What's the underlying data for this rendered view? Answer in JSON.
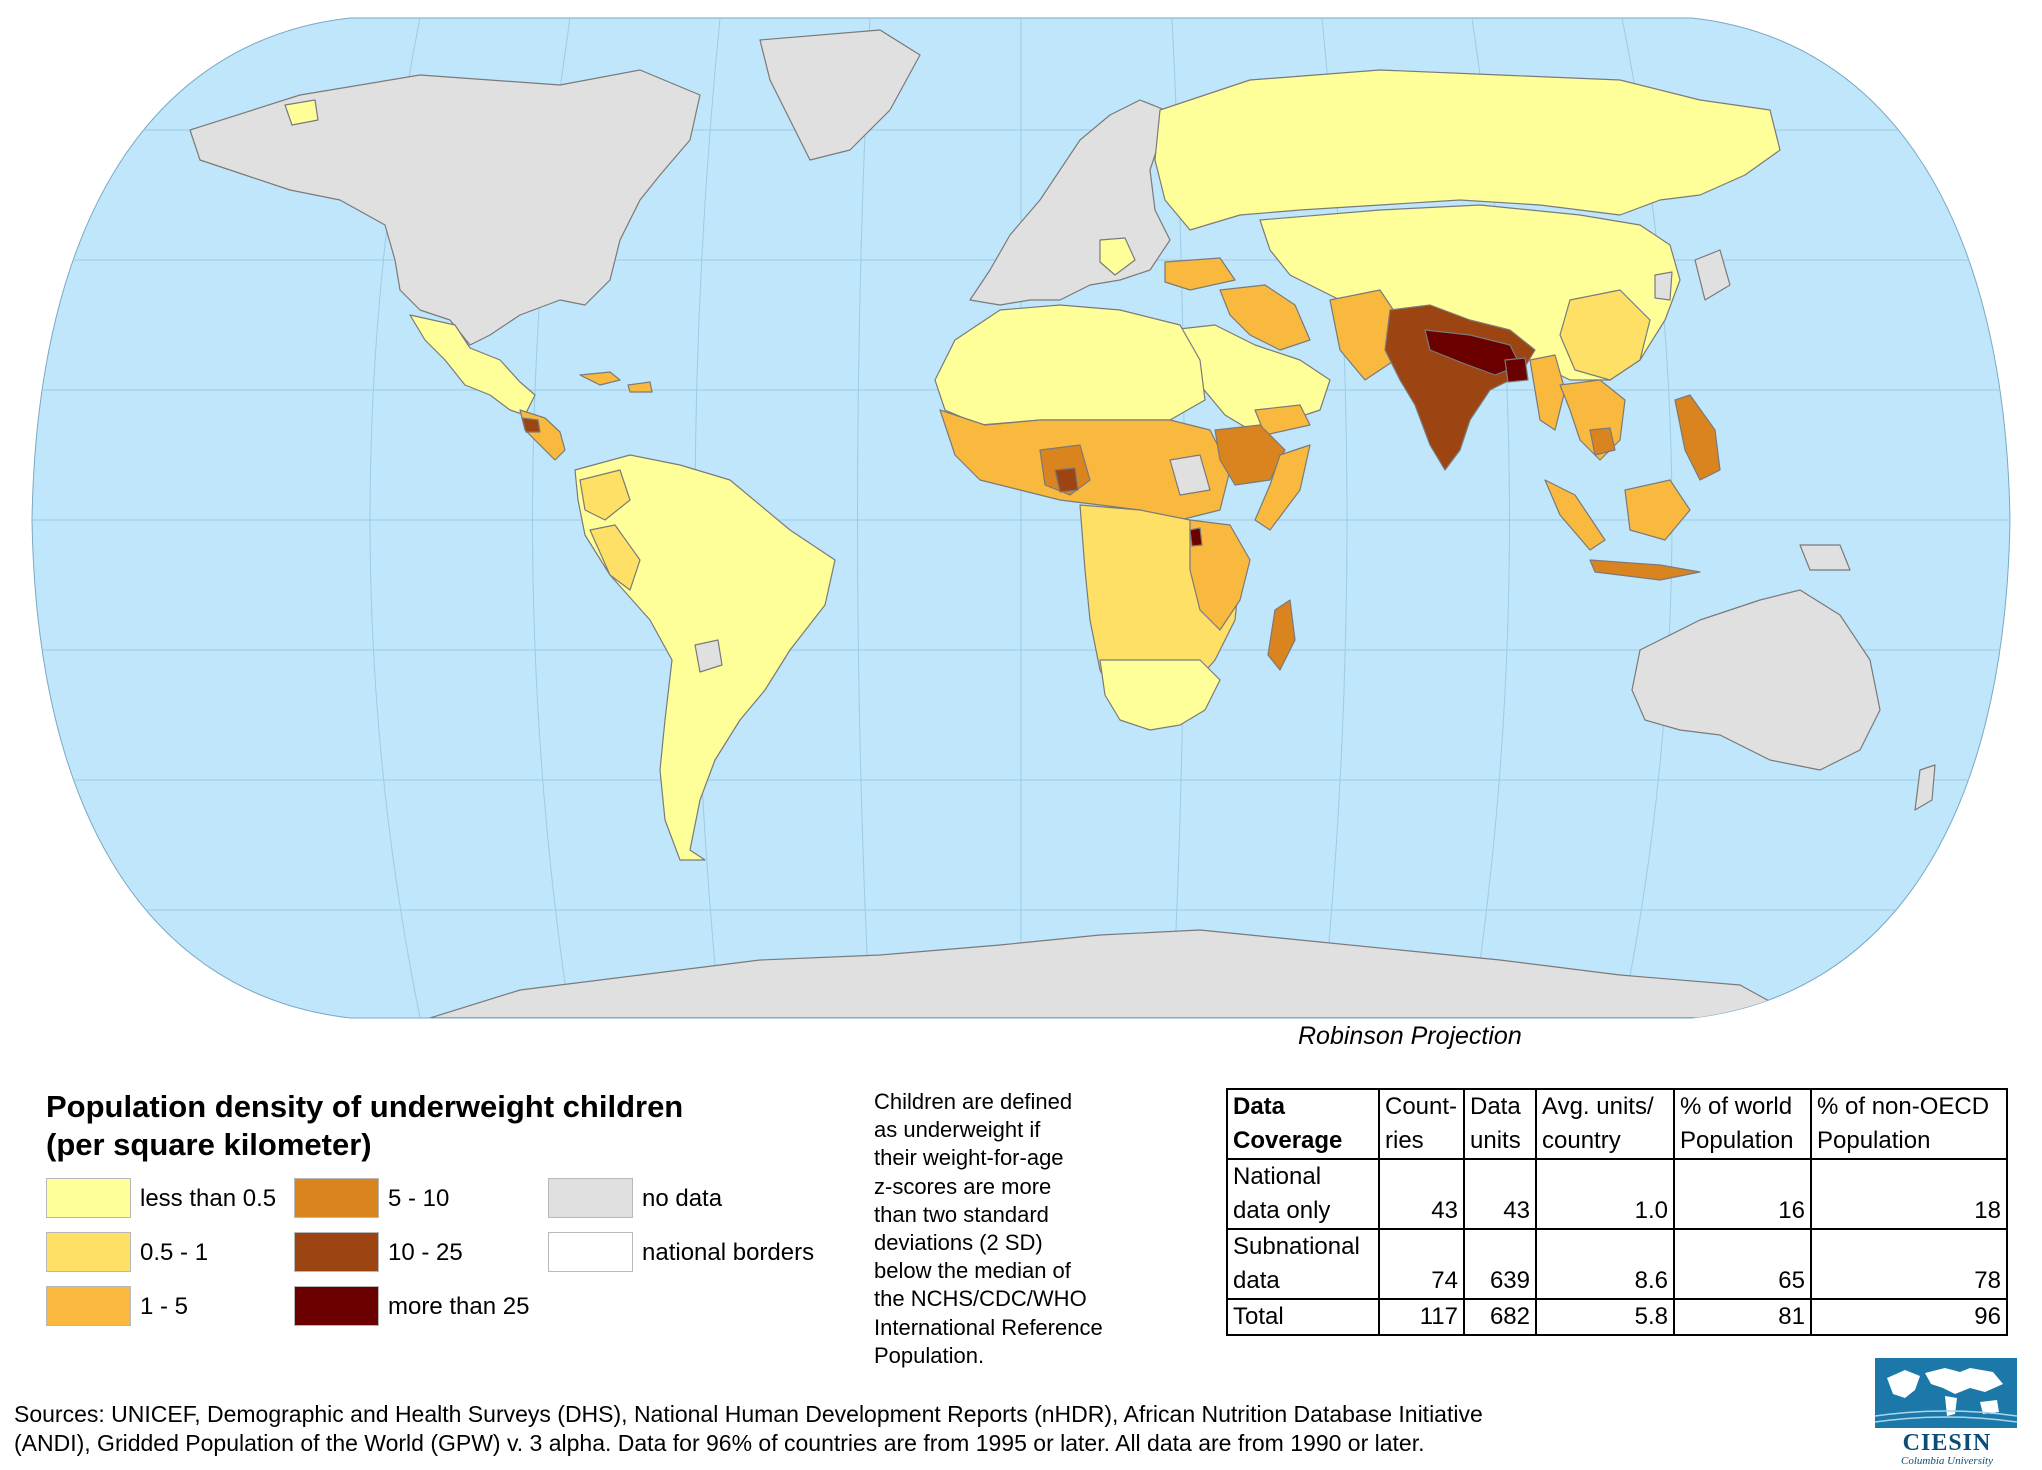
{
  "map": {
    "projection_label": "Robinson Projection",
    "ocean_color": "#bfe6fa",
    "graticule_color": "#9ecbe3"
  },
  "legend": {
    "title_line1": "Population density of underweight children",
    "title_line2": "(per square kilometer)",
    "classes": [
      {
        "label": "less than 0.5",
        "color": "#ffff99"
      },
      {
        "label": "0.5 - 1",
        "color": "#ffe066"
      },
      {
        "label": "1 - 5",
        "color": "#f9b93e"
      },
      {
        "label": "5 - 10",
        "color": "#d9841f"
      },
      {
        "label": "10 - 25",
        "color": "#9c4412"
      },
      {
        "label": "more than 25",
        "color": "#6b0000"
      },
      {
        "label": "no data",
        "color": "#e0e0e0"
      },
      {
        "label": "national borders",
        "color": "#ffffff"
      }
    ]
  },
  "definition": {
    "lines": [
      "Children are defined",
      "as underweight if",
      "their weight-for-age",
      "z-scores are more",
      "than two standard",
      "deviations (2 SD)",
      "below the median of",
      "the NCHS/CDC/WHO",
      "International Reference",
      "Population."
    ]
  },
  "coverage_table": {
    "header": {
      "c0": [
        "Data",
        "Coverage"
      ],
      "c1": [
        "Count-",
        "ries"
      ],
      "c2": [
        "Data",
        "units"
      ],
      "c3": [
        "Avg. units/",
        "country"
      ],
      "c4": [
        "% of world",
        "Population"
      ],
      "c5": [
        "% of non-OECD",
        "Population"
      ]
    },
    "rows": [
      {
        "label": [
          "National",
          "data only"
        ],
        "countries": "43",
        "units": "43",
        "avg": "1.0",
        "world": "16",
        "nonoecd": "18"
      },
      {
        "label": [
          "Subnational",
          "data"
        ],
        "countries": "74",
        "units": "639",
        "avg": "8.6",
        "world": "65",
        "nonoecd": "78"
      },
      {
        "label": [
          "Total"
        ],
        "countries": "117",
        "units": "682",
        "avg": "5.8",
        "world": "81",
        "nonoecd": "96"
      }
    ]
  },
  "sources": {
    "line1": "Sources: UNICEF, Demographic and Health Surveys (DHS), National Human Development Reports (nHDR), African Nutrition Database Initiative",
    "line2": "(ANDI), Gridded Population of the World (GPW) v. 3 alpha.  Data for 96% of countries are from 1995 or later. All data are from 1990 or later."
  },
  "logo": {
    "word": "CIESIN",
    "sub": "Columbia University"
  }
}
